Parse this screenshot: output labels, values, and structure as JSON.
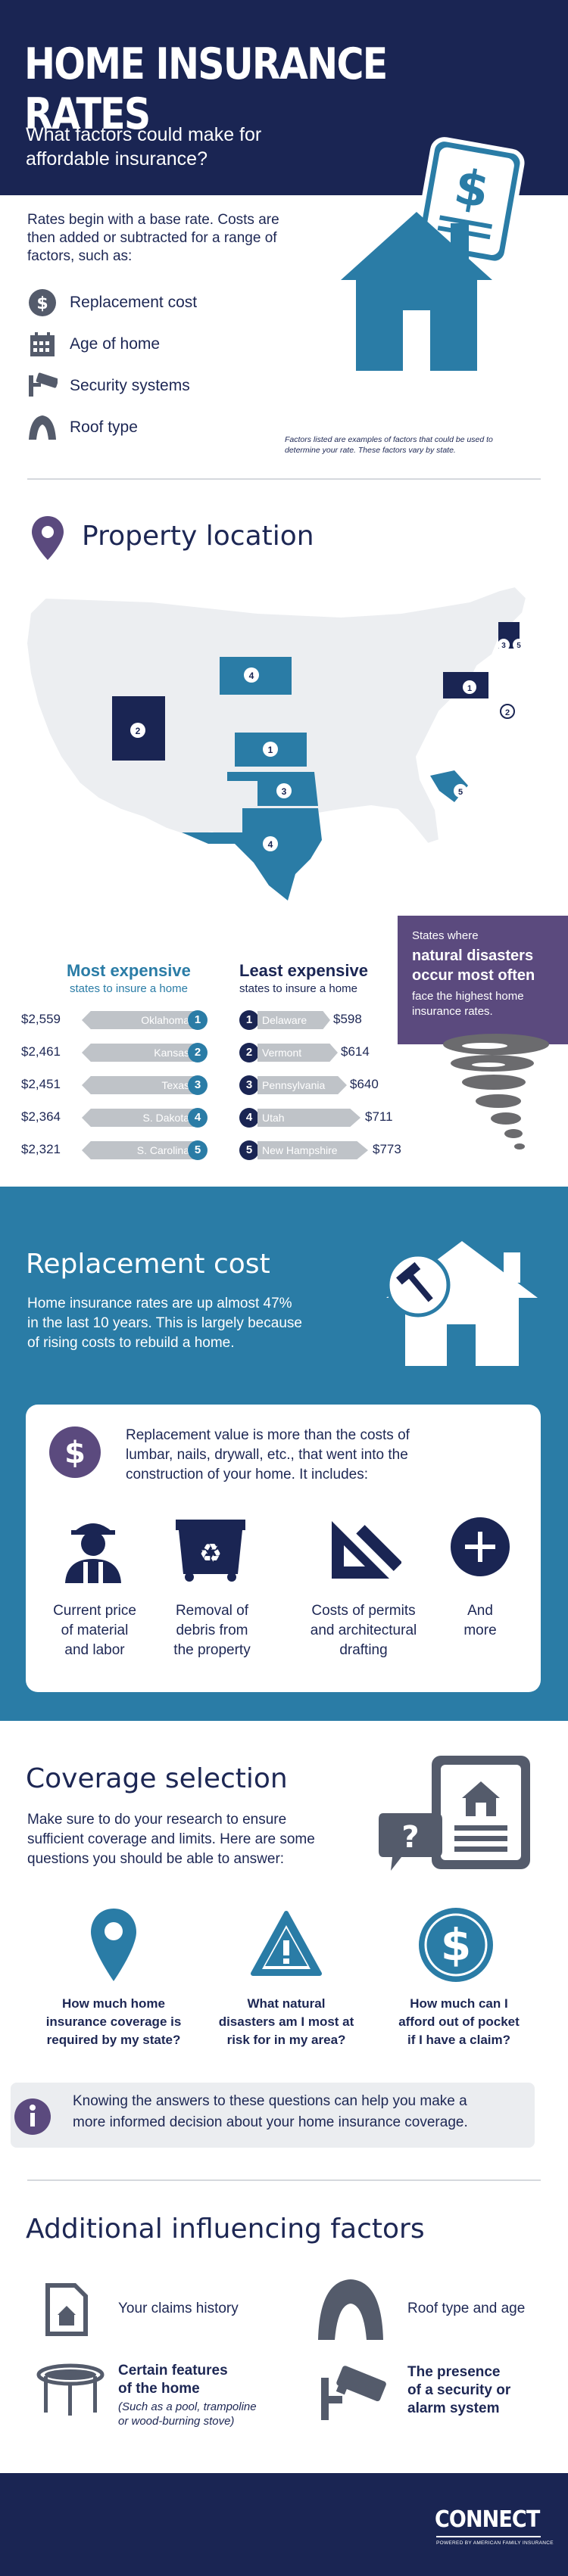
{
  "header": {
    "title": "HOME INSURANCE RATES",
    "subtitle_line1": "What factors could make for",
    "subtitle_line2": "affordable insurance?"
  },
  "intro": {
    "text_line1": "Rates begin with a base rate. Costs are",
    "text_line2": "then added or subtracted for a range of",
    "text_line3": "factors, such as:",
    "factors": [
      "Replacement cost",
      "Age of home",
      "Security systems",
      "Roof type"
    ],
    "footnote_line1": "Factors listed are examples of factors that could be used to",
    "footnote_line2": "determine your rate. These factors vary by state."
  },
  "property": {
    "title": "Property location",
    "most_title": "Most expensive",
    "most_sub": "states to insure a home",
    "least_title": "Least expensive",
    "least_sub": "states to insure a home",
    "most": [
      {
        "rank": "1",
        "state": "Oklahoma",
        "price": "$2,559"
      },
      {
        "rank": "2",
        "state": "Kansas",
        "price": "$2,461"
      },
      {
        "rank": "3",
        "state": "Texas",
        "price": "$2,451"
      },
      {
        "rank": "4",
        "state": "S. Dakota",
        "price": "$2,364"
      },
      {
        "rank": "5",
        "state": "S. Carolina",
        "price": "$2,321"
      }
    ],
    "least": [
      {
        "rank": "1",
        "state": "Delaware",
        "price": "$598"
      },
      {
        "rank": "2",
        "state": "Vermont",
        "price": "$614"
      },
      {
        "rank": "3",
        "state": "Pennsylvania",
        "price": "$640"
      },
      {
        "rank": "4",
        "state": "Utah",
        "price": "$711"
      },
      {
        "rank": "5",
        "state": "New Hampshire",
        "price": "$773"
      }
    ],
    "disaster_line1": "States where",
    "disaster_line2": "natural disasters",
    "disaster_line3": "occur most often",
    "disaster_line4": "face the highest home",
    "disaster_line5": "insurance rates.",
    "map_labels": [
      "4",
      "2",
      "1",
      "3",
      "4",
      "5",
      "1",
      "2",
      "3",
      "5"
    ]
  },
  "replacement": {
    "title": "Replacement cost",
    "text_line1": "Home insurance rates are up almost 47%",
    "text_line2": "in the last 10 years. This is largely because",
    "text_line3": "of rising costs to rebuild a home.",
    "card_line1": "Replacement value is more than the costs of",
    "card_line2": "lumbar, nails, drywall, etc., that went into the",
    "card_line3": "construction of your home. It includes:",
    "items": [
      {
        "l1": "Current price",
        "l2": "of material",
        "l3": "and labor"
      },
      {
        "l1": "Removal of",
        "l2": "debris from",
        "l3": "the property"
      },
      {
        "l1": "Costs of permits",
        "l2": "and architectural",
        "l3": "drafting"
      },
      {
        "l1": "And",
        "l2": "more",
        "l3": ""
      }
    ]
  },
  "coverage": {
    "title": "Coverage selection",
    "text_line1": "Make sure to do your research to ensure",
    "text_line2": "sufficient coverage and limits. Here are some",
    "text_line3": "questions you should be able to answer:",
    "questions": [
      {
        "l1": "How much home",
        "l2": "insurance coverage is",
        "l3": "required by my state?"
      },
      {
        "l1": "What natural",
        "l2": "disasters am I most at",
        "l3": "risk for in my area?"
      },
      {
        "l1": "How much can I",
        "l2": "afford out of pocket",
        "l3": "if I have a claim?"
      }
    ],
    "info_line1": "Knowing the answers to these questions can help you make a",
    "info_line2": "more informed decision about your home insurance coverage."
  },
  "additional": {
    "title": "Additional influencing factors",
    "claims": "Your claims history",
    "roof": "Roof type and age",
    "features_l1": "Certain features",
    "features_l2": "of the home",
    "features_n1": "(Such as a pool, trampoline",
    "features_n2": "or wood-burning stove)",
    "security_l1": "The presence",
    "security_l2": "of a security or",
    "security_l3": "alarm system"
  },
  "footer": {
    "logo": "CONNECT",
    "logo_sub": "POWERED BY AMERICAN FAMILY INSURANCE"
  },
  "colors": {
    "navy": "#1a2553",
    "blue": "#2a7ca6",
    "purple": "#5b4a7e",
    "gray": "#bfc3c8"
  }
}
